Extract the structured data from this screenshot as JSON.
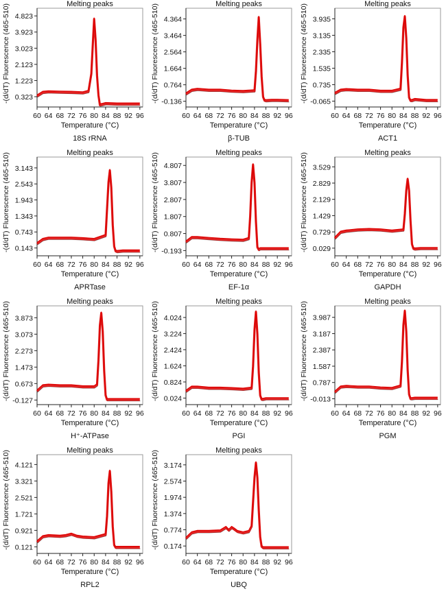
{
  "figure": {
    "panel_labels": [
      "18S rRNA",
      "β-TUB",
      "ACT1",
      "APRTase",
      "EF-1α",
      "GAPDH",
      "H⁺-ATPase",
      "PGI",
      "PGM",
      "RPL2",
      "UBQ"
    ]
  },
  "chart_data": [
    {
      "type": "line",
      "title": "Melting peaks",
      "xlabel": "Temperature (°C)",
      "ylabel": "-(d/dT) Fluorescence (465-510)",
      "caption": "18S rRNA",
      "x_ticks": [
        60,
        64,
        68,
        72,
        76,
        80,
        84,
        88,
        92,
        96
      ],
      "y_ticks": [
        "0.323",
        "1.223",
        "2.123",
        "3.023",
        "3.923",
        "4.823"
      ],
      "xlim": [
        60,
        97
      ],
      "ylim": [
        -0.25,
        5.25
      ],
      "grid": false,
      "series_color": "#e00000",
      "series": [
        {
          "x": [
            60,
            62,
            64,
            68,
            72,
            76,
            78,
            79,
            79.5,
            80,
            80.5,
            81,
            81.5,
            82,
            83,
            84,
            88,
            92,
            96
          ],
          "y": [
            0.35,
            0.55,
            0.58,
            0.56,
            0.55,
            0.52,
            0.6,
            1.6,
            3.2,
            4.65,
            3.5,
            1.5,
            0.4,
            -0.15,
            -0.12,
            -0.08,
            -0.1,
            -0.1,
            -0.1
          ]
        }
      ]
    },
    {
      "type": "line",
      "title": "Melting peaks",
      "xlabel": "Temperature (°C)",
      "ylabel": "-(d/dT) Fluorescence (465-510)",
      "caption": "β-TUB",
      "x_ticks": [
        60,
        64,
        68,
        72,
        76,
        80,
        84,
        88,
        92,
        96
      ],
      "y_ticks": [
        "-0.136",
        "0.764",
        "1.664",
        "2.564",
        "3.464",
        "4.364"
      ],
      "xlim": [
        60,
        97
      ],
      "ylim": [
        -0.45,
        4.95
      ],
      "grid": false,
      "series_color": "#e00000",
      "series": [
        {
          "x": [
            60,
            62,
            64,
            68,
            72,
            76,
            80,
            84,
            84.5,
            85,
            85.5,
            86,
            86.5,
            87,
            87.5,
            88,
            90,
            92,
            96
          ],
          "y": [
            0.25,
            0.45,
            0.5,
            0.45,
            0.45,
            0.4,
            0.38,
            0.42,
            1.5,
            3.2,
            4.45,
            3.0,
            1.2,
            0.1,
            -0.1,
            -0.12,
            -0.1,
            -0.1,
            -0.12
          ]
        }
      ]
    },
    {
      "type": "line",
      "title": "Melting peaks",
      "xlabel": "Temperature (°C)",
      "ylabel": "-(d/dT) Fluorescence (465-510)",
      "caption": "ACT1",
      "x_ticks": [
        60,
        64,
        68,
        72,
        76,
        80,
        84,
        88,
        92,
        96
      ],
      "y_ticks": [
        "-0.065",
        "0.735",
        "1.535",
        "2.335",
        "3.135",
        "3.935"
      ],
      "xlim": [
        60,
        97
      ],
      "ylim": [
        -0.35,
        4.45
      ],
      "grid": false,
      "series_color": "#e00000",
      "series": [
        {
          "x": [
            60,
            62,
            64,
            68,
            72,
            76,
            80,
            83,
            83.5,
            84,
            84.5,
            85,
            85.5,
            86,
            86.5,
            87,
            88,
            92,
            96
          ],
          "y": [
            0.3,
            0.45,
            0.48,
            0.45,
            0.45,
            0.4,
            0.4,
            0.5,
            1.8,
            3.5,
            4.05,
            3.0,
            1.2,
            0.1,
            -0.05,
            -0.05,
            0.0,
            -0.05,
            -0.05
          ]
        }
      ]
    },
    {
      "type": "line",
      "title": "Melting peaks",
      "xlabel": "Temperature (°C)",
      "ylabel": "-(d/dT) Fluorescence (465-510)",
      "caption": "APRTase",
      "x_ticks": [
        60,
        64,
        68,
        72,
        76,
        80,
        84,
        88,
        92,
        96
      ],
      "y_ticks": [
        "0.143",
        "0.743",
        "1.343",
        "1.943",
        "2.543",
        "3.143"
      ],
      "xlim": [
        60,
        97
      ],
      "ylim": [
        -0.15,
        3.55
      ],
      "grid": false,
      "series_color": "#e00000",
      "series": [
        {
          "x": [
            60,
            62,
            64,
            68,
            72,
            76,
            80,
            84,
            84.5,
            85,
            85.5,
            86,
            86.5,
            87,
            87.5,
            88,
            90,
            96
          ],
          "y": [
            0.3,
            0.45,
            0.5,
            0.5,
            0.5,
            0.48,
            0.45,
            0.6,
            1.6,
            2.6,
            3.05,
            2.4,
            1.0,
            0.2,
            0.02,
            0.0,
            0.02,
            0.02
          ]
        }
      ]
    },
    {
      "type": "line",
      "title": "Melting peaks",
      "xlabel": "Temperature (°C)",
      "ylabel": "-(d/dT) Fluorescence (465-510)",
      "caption": "EF-1α",
      "x_ticks": [
        60,
        64,
        68,
        72,
        76,
        80,
        84,
        88,
        92,
        96
      ],
      "y_ticks": [
        "-0.193",
        "0.807",
        "1.807",
        "2.807",
        "3.807",
        "4.807"
      ],
      "xlim": [
        60,
        97
      ],
      "ylim": [
        -0.5,
        5.3
      ],
      "grid": false,
      "series_color": "#e00000",
      "series": [
        {
          "x": [
            60,
            62,
            64,
            68,
            72,
            76,
            80,
            82,
            82.5,
            83,
            83.5,
            84,
            84.5,
            85,
            85.5,
            86,
            88,
            92,
            96
          ],
          "y": [
            0.3,
            0.55,
            0.55,
            0.5,
            0.45,
            0.42,
            0.4,
            0.5,
            1.8,
            3.8,
            4.85,
            3.8,
            1.5,
            0.0,
            -0.15,
            -0.1,
            -0.1,
            -0.1,
            -0.1
          ]
        }
      ]
    },
    {
      "type": "line",
      "title": "Melting peaks",
      "xlabel": "Temperature (°C)",
      "ylabel": "-(d/dT) Fluorescence (465-510)",
      "caption": "GAPDH",
      "x_ticks": [
        60,
        64,
        68,
        72,
        76,
        80,
        84,
        88,
        92,
        96
      ],
      "y_ticks": [
        "0.029",
        "0.729",
        "1.429",
        "2.129",
        "2.829",
        "3.529"
      ],
      "xlim": [
        60,
        97
      ],
      "ylim": [
        -0.3,
        3.95
      ],
      "grid": false,
      "series_color": "#e00000",
      "series": [
        {
          "x": [
            60,
            62,
            64,
            68,
            72,
            76,
            80,
            84,
            84.5,
            85,
            85.5,
            86,
            86.5,
            87,
            87.5,
            88,
            90,
            96
          ],
          "y": [
            0.45,
            0.7,
            0.75,
            0.8,
            0.82,
            0.8,
            0.75,
            0.8,
            1.5,
            2.5,
            3.0,
            2.5,
            1.2,
            0.2,
            0.0,
            -0.02,
            0.0,
            0.0
          ]
        }
      ]
    },
    {
      "type": "line",
      "title": "Melting peaks",
      "xlabel": "Temperature (°C)",
      "ylabel": "-(d/dT) Fluorescence (465-510)",
      "caption": "H⁺-ATPase",
      "x_ticks": [
        60,
        64,
        68,
        72,
        76,
        80,
        84,
        88,
        92,
        96
      ],
      "y_ticks": [
        "-0.127",
        "0.673",
        "1.473",
        "2.273",
        "3.073",
        "3.873"
      ],
      "xlim": [
        60,
        97
      ],
      "ylim": [
        -0.35,
        4.45
      ],
      "grid": false,
      "series_color": "#e00000",
      "series": [
        {
          "x": [
            60,
            62,
            64,
            68,
            72,
            76,
            80,
            81,
            81.5,
            82,
            82.5,
            83,
            83.5,
            84,
            84.5,
            85,
            88,
            92,
            96
          ],
          "y": [
            0.3,
            0.55,
            0.58,
            0.55,
            0.55,
            0.5,
            0.5,
            0.6,
            1.8,
            3.5,
            4.1,
            3.2,
            1.3,
            0.1,
            -0.12,
            -0.12,
            -0.12,
            -0.12,
            -0.12
          ]
        }
      ]
    },
    {
      "type": "line",
      "title": "Melting peaks",
      "xlabel": "Temperature (°C)",
      "ylabel": "-(d/dT) Fluorescence (465-510)",
      "caption": "PGI",
      "x_ticks": [
        60,
        64,
        68,
        72,
        76,
        80,
        84,
        88,
        92,
        96
      ],
      "y_ticks": [
        "0.024",
        "0.824",
        "1.624",
        "2.424",
        "3.224",
        "4.024"
      ],
      "xlim": [
        60,
        97
      ],
      "ylim": [
        -0.3,
        4.6
      ],
      "grid": false,
      "series_color": "#e00000",
      "series": [
        {
          "x": [
            60,
            62,
            64,
            68,
            72,
            76,
            80,
            83,
            83.5,
            84,
            84.5,
            85,
            85.5,
            86,
            86.5,
            87,
            88,
            92,
            96
          ],
          "y": [
            0.35,
            0.55,
            0.55,
            0.5,
            0.5,
            0.48,
            0.45,
            0.5,
            1.6,
            3.4,
            4.3,
            3.2,
            1.3,
            0.15,
            -0.05,
            -0.05,
            -0.02,
            -0.02,
            -0.02
          ]
        }
      ]
    },
    {
      "type": "line",
      "title": "Melting peaks",
      "xlabel": "Temperature (°C)",
      "ylabel": "-(d/dT) Fluorescence (465-510)",
      "caption": "PGM",
      "x_ticks": [
        60,
        64,
        68,
        72,
        76,
        80,
        84,
        88,
        92,
        96
      ],
      "y_ticks": [
        "-0.013",
        "0.787",
        "1.587",
        "2.387",
        "3.187",
        "3.987"
      ],
      "xlim": [
        60,
        97
      ],
      "ylim": [
        -0.3,
        4.55
      ],
      "grid": false,
      "series_color": "#e00000",
      "series": [
        {
          "x": [
            60,
            62,
            64,
            68,
            72,
            76,
            80,
            83,
            83.5,
            84,
            84.5,
            85,
            85.5,
            86,
            86.5,
            87,
            88,
            92,
            96
          ],
          "y": [
            0.3,
            0.55,
            0.58,
            0.55,
            0.55,
            0.5,
            0.48,
            0.6,
            1.8,
            3.6,
            4.3,
            3.3,
            1.4,
            0.2,
            -0.02,
            -0.02,
            0.0,
            0.0,
            0.0
          ]
        }
      ]
    },
    {
      "type": "line",
      "title": "Melting peaks",
      "xlabel": "Temperature (°C)",
      "ylabel": "-(d/dT) Fluorescence (465-510)",
      "caption": "RPL2",
      "x_ticks": [
        60,
        64,
        68,
        72,
        76,
        80,
        84,
        88,
        92,
        96
      ],
      "y_ticks": [
        "0.121",
        "0.921",
        "1.721",
        "2.521",
        "3.321",
        "4.121"
      ],
      "xlim": [
        60,
        97
      ],
      "ylim": [
        -0.2,
        4.6
      ],
      "grid": false,
      "series_color": "#e00000",
      "series": [
        {
          "x": [
            60,
            62,
            64,
            68,
            70,
            72,
            74,
            76,
            80,
            84,
            84.5,
            85,
            85.5,
            86,
            86.5,
            87,
            87.5,
            88,
            92,
            96
          ],
          "y": [
            0.35,
            0.6,
            0.65,
            0.62,
            0.65,
            0.72,
            0.62,
            0.58,
            0.55,
            0.7,
            1.6,
            3.2,
            3.8,
            2.8,
            1.1,
            0.2,
            0.08,
            0.08,
            0.08,
            0.08
          ]
        }
      ]
    },
    {
      "type": "line",
      "title": "Melting peaks",
      "xlabel": "Temperature (°C)",
      "ylabel": "-(d/dT) Fluorescence (465-510)",
      "caption": "UBQ",
      "x_ticks": [
        60,
        64,
        68,
        72,
        76,
        80,
        84,
        88,
        92,
        96
      ],
      "y_ticks": [
        "0.174",
        "0.774",
        "1.374",
        "1.974",
        "2.574",
        "3.174"
      ],
      "xlim": [
        60,
        97
      ],
      "ylim": [
        -0.1,
        3.55
      ],
      "grid": false,
      "series_color": "#e00000",
      "series": [
        {
          "x": [
            60,
            62,
            64,
            68,
            72,
            74,
            75,
            76,
            77,
            78,
            80,
            82,
            83,
            83.5,
            84,
            84.5,
            85,
            85.5,
            86,
            86.5,
            87,
            88,
            92,
            96
          ],
          "y": [
            0.45,
            0.65,
            0.7,
            0.7,
            0.72,
            0.85,
            0.75,
            0.85,
            0.78,
            0.7,
            0.65,
            0.7,
            0.9,
            1.8,
            2.7,
            3.25,
            2.7,
            1.5,
            0.5,
            0.15,
            0.1,
            0.1,
            0.1,
            0.1
          ]
        }
      ]
    }
  ]
}
